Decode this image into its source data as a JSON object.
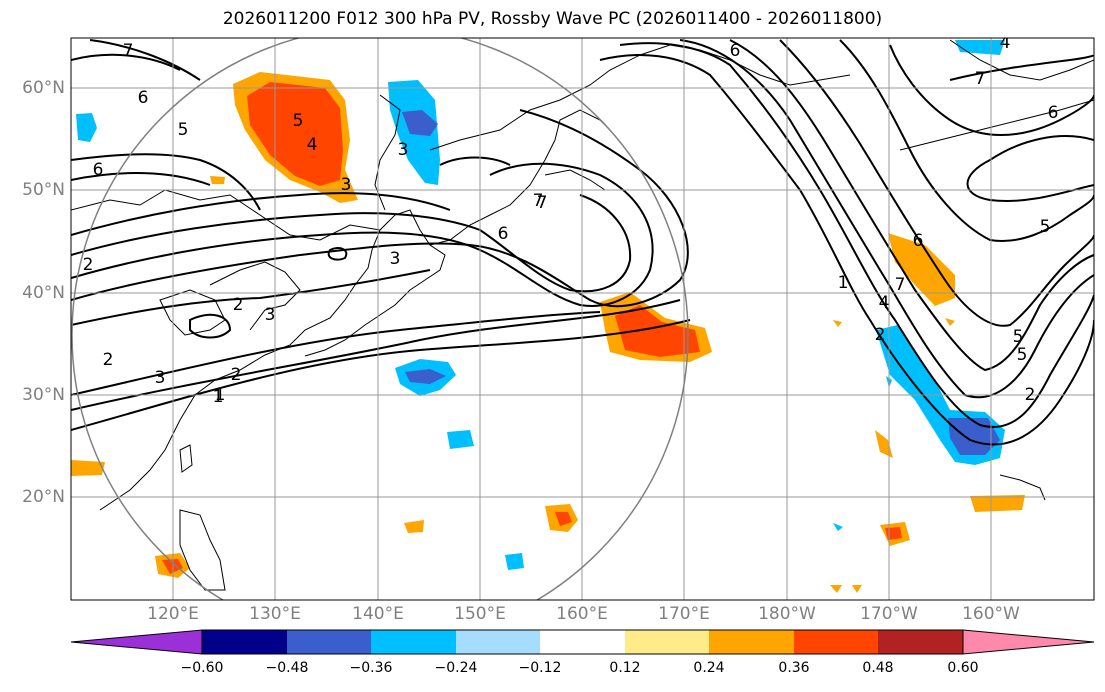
{
  "title": "2026011200 F012 300 hPa PV, Rossby Wave PC (2026011400 - 2026011800)",
  "lat_labels": [
    "60°N",
    "50°N",
    "40°N",
    "30°N",
    "20°N"
  ],
  "lon_labels": [
    "120°E",
    "130°E",
    "140°E",
    "150°E",
    "160°E",
    "170°E",
    "180°W",
    "170°W",
    "160°W"
  ],
  "colorbar": {
    "colors": [
      "#9b30d9",
      "#00008b",
      "#3a5fcd",
      "#00bfff",
      "#a6dcff",
      "#ffffff",
      "#ffeb8a",
      "#ffa500",
      "#ff4500",
      "#b22222",
      "#ff89ac"
    ],
    "tick_labels": [
      "−0.60",
      "−0.48",
      "−0.36",
      "−0.24",
      "−0.12",
      "0.12",
      "0.24",
      "0.36",
      "0.48",
      "0.60"
    ]
  },
  "contour_labels": [
    "7",
    "6",
    "5",
    "6",
    "5",
    "4",
    "3",
    "2",
    "1",
    "7",
    "6",
    "3",
    "2",
    "3",
    "2",
    "1",
    "2",
    "3",
    "7",
    "6",
    "5",
    "4",
    "1",
    "6",
    "7",
    "5",
    "5",
    "2",
    "7",
    "6",
    "4",
    "3",
    "2"
  ]
}
